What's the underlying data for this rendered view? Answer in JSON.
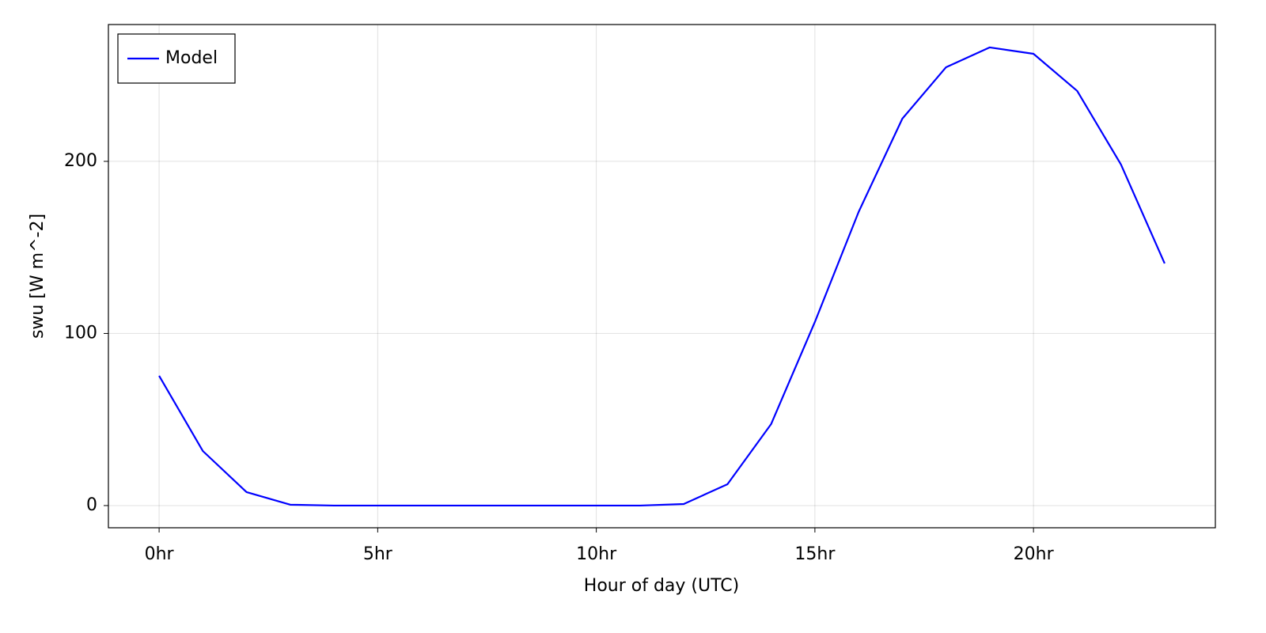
{
  "chart_data": {
    "type": "line",
    "x_label": "Hour of day (UTC)",
    "y_label": "swu [W m^-2]",
    "x": [
      0,
      1,
      2,
      3,
      4,
      5,
      6,
      7,
      8,
      9,
      10,
      11,
      12,
      13,
      14,
      15,
      16,
      17,
      18,
      19,
      20,
      21,
      22,
      23
    ],
    "series": [
      {
        "name": "Model",
        "color": "#0000ff",
        "values": [
          75.4,
          31.7,
          7.8,
          0.5,
          0,
          0,
          0,
          0,
          0,
          0,
          0,
          0,
          0.9,
          12.4,
          47.4,
          106.7,
          170.6,
          224.8,
          254.7,
          266.2,
          262.5,
          240.9,
          198.2,
          140.7
        ]
      }
    ],
    "xlim": [
      -1.16,
      24.16
    ],
    "ylim": [
      -12.9,
      279.5
    ],
    "xticks": [
      {
        "value": 0,
        "label": "0hr"
      },
      {
        "value": 5,
        "label": "5hr"
      },
      {
        "value": 10,
        "label": "10hr"
      },
      {
        "value": 15,
        "label": "15hr"
      },
      {
        "value": 20,
        "label": "20hr"
      }
    ],
    "yticks": [
      0,
      100,
      200
    ],
    "grid": true,
    "legend": "top-left"
  }
}
